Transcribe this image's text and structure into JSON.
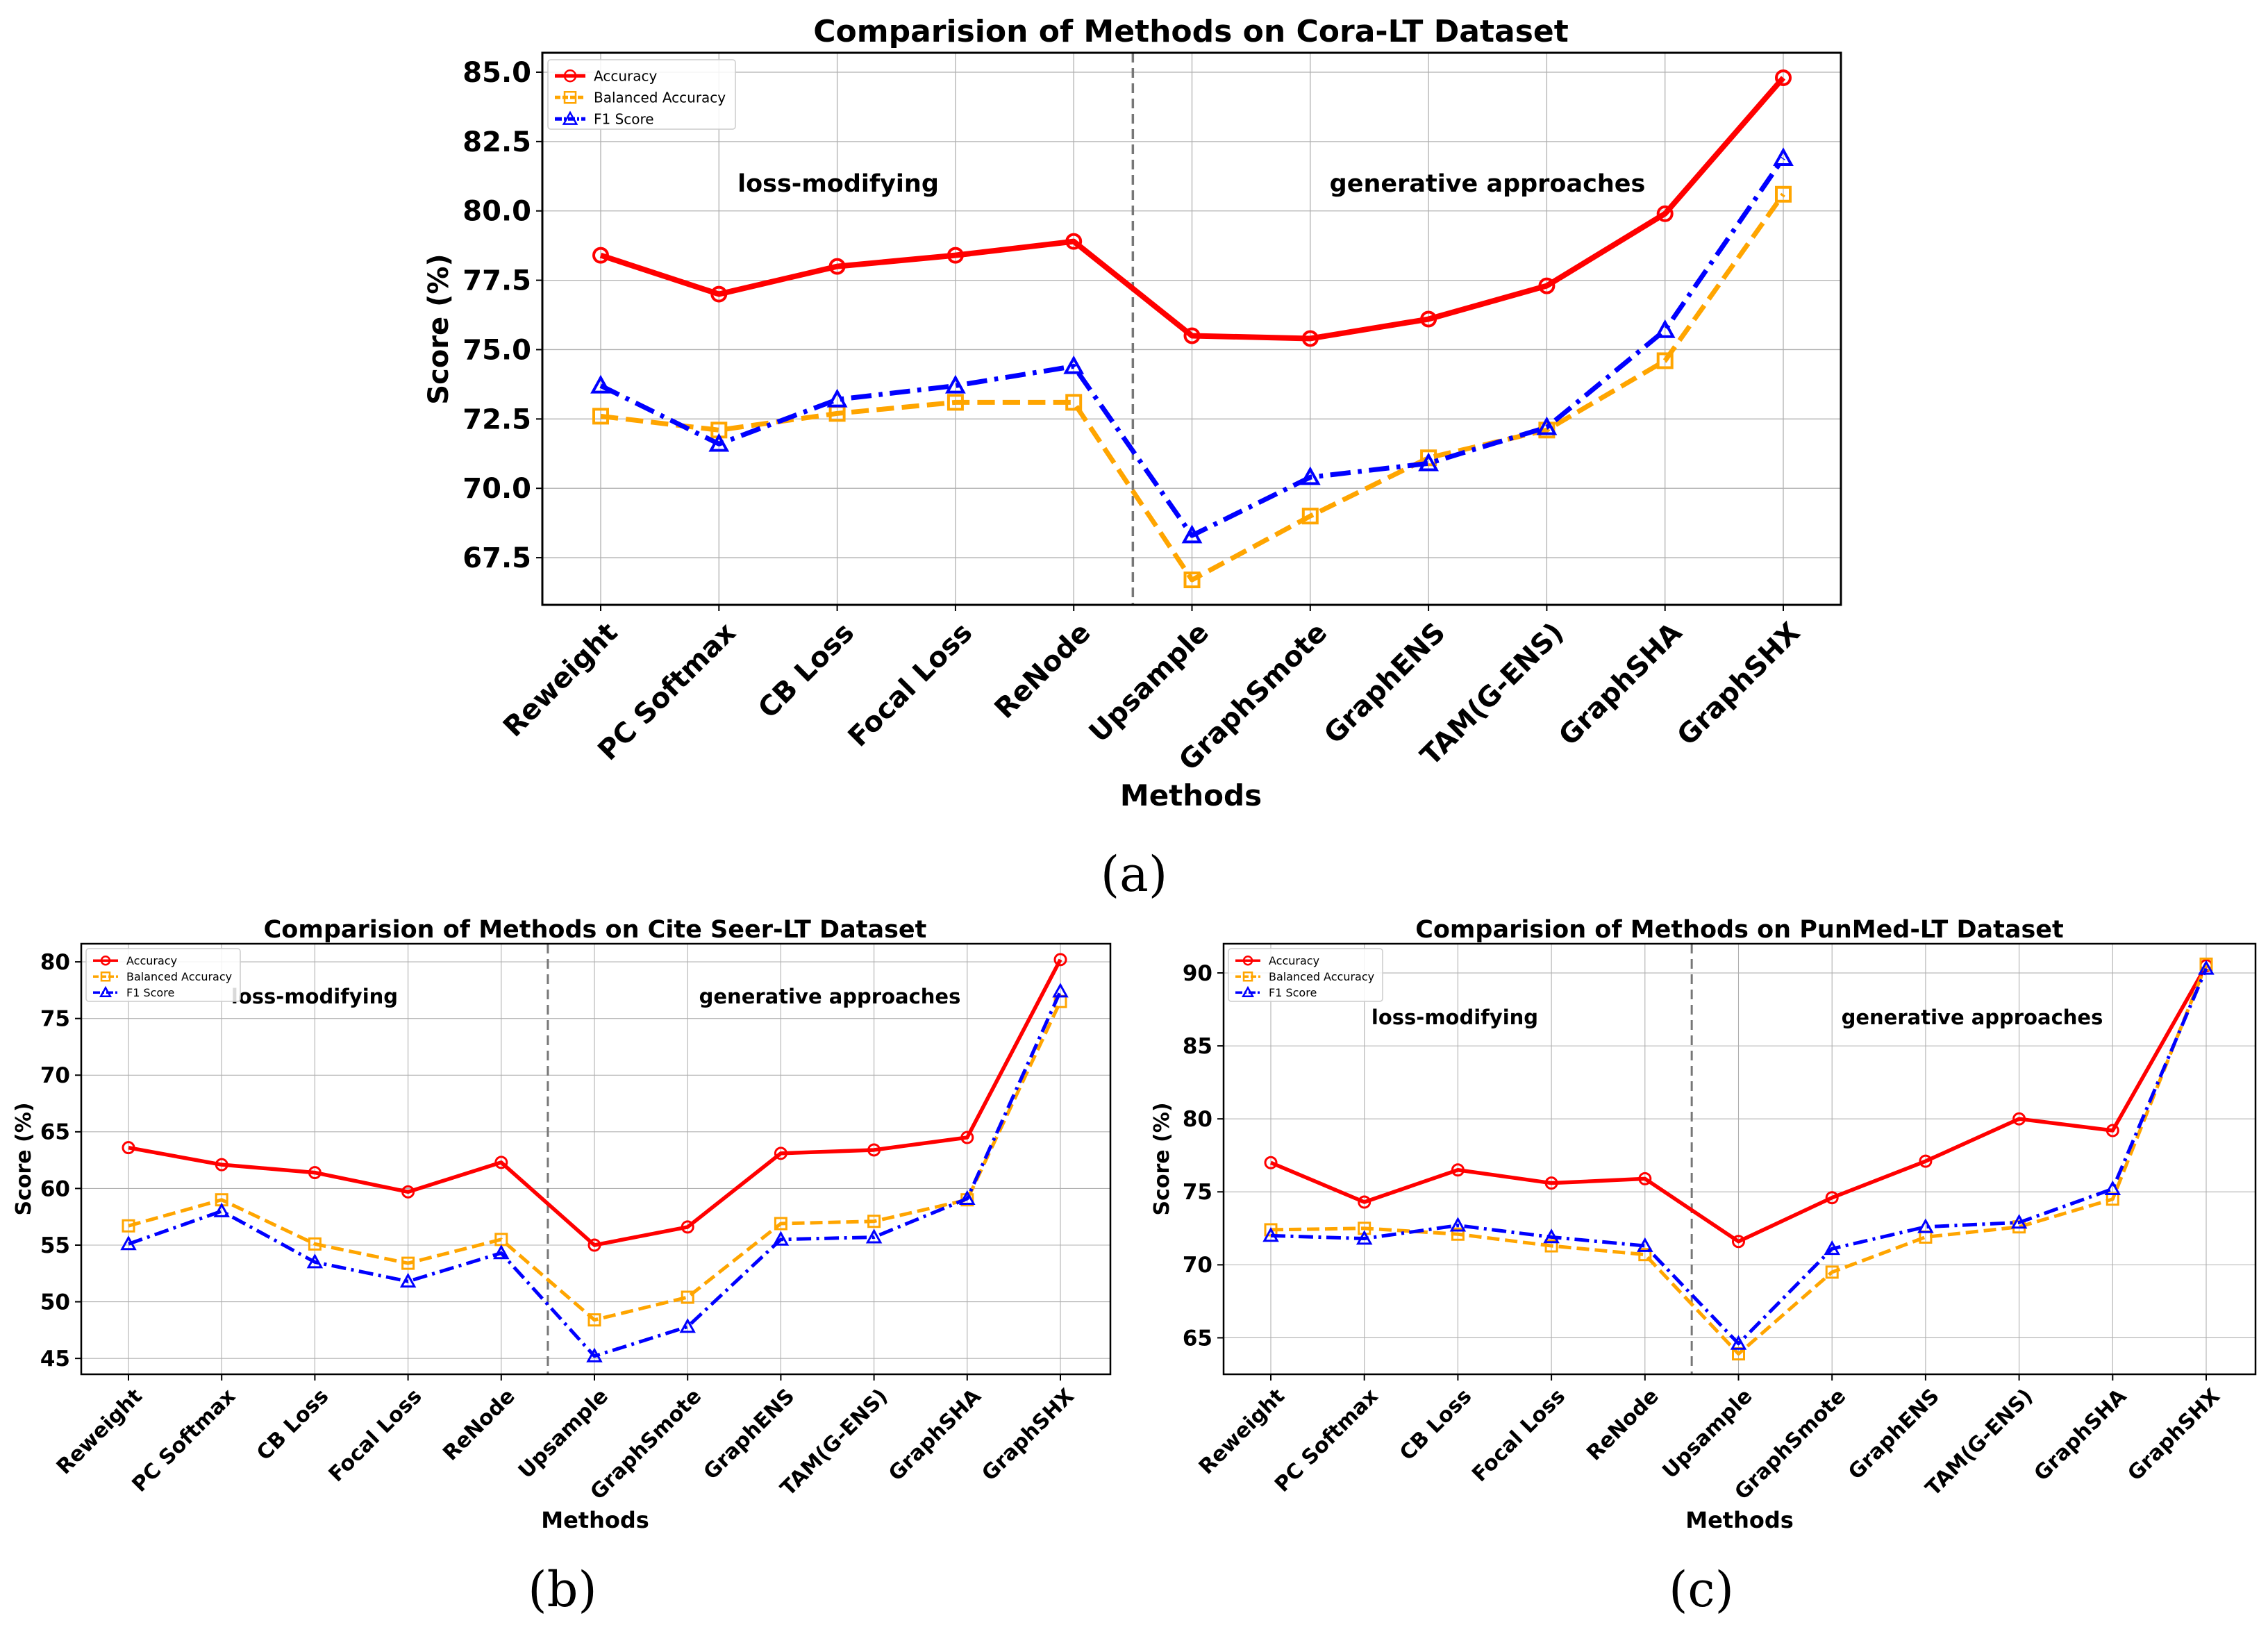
{
  "chart_data": [
    {
      "type": "line",
      "panel_label": "(a)",
      "title": "Comparision of Methods on Cora-LT Dataset",
      "xlabel": "Methods",
      "ylabel": "Score (%)",
      "categories": [
        "Reweight",
        "PC Softmax",
        "CB Loss",
        "Focal Loss",
        "ReNode",
        "Upsample",
        "GraphSmote",
        "GraphENS",
        "TAM(G-ENS)",
        "GraphSHA",
        "GraphSHX"
      ],
      "ylim": [
        65.8,
        85.7
      ],
      "yticks": [
        67.5,
        70.0,
        72.5,
        75.0,
        77.5,
        80.0,
        82.5,
        85.0
      ],
      "ytick_labels": [
        "67.5",
        "70.0",
        "72.5",
        "75.0",
        "77.5",
        "80.0",
        "82.5",
        "85.0"
      ],
      "grid": true,
      "divider_after_index": 4,
      "regions": [
        "loss-modifying",
        "generative approaches"
      ],
      "legend_position": "top-left",
      "series": [
        {
          "name": "Accuracy",
          "color": "#ff0000",
          "marker": "circle",
          "linestyle": "solid",
          "values": [
            78.4,
            77.0,
            78.0,
            78.4,
            78.9,
            75.5,
            75.4,
            76.1,
            77.3,
            79.9,
            84.8
          ]
        },
        {
          "name": "Balanced Accuracy",
          "color": "#ffa500",
          "marker": "square",
          "linestyle": "dashed",
          "values": [
            72.6,
            72.1,
            72.7,
            73.1,
            73.1,
            66.7,
            69.0,
            71.1,
            72.1,
            74.6,
            80.6
          ]
        },
        {
          "name": "F1 Score",
          "color": "#0000ff",
          "marker": "triangle",
          "linestyle": "dashdot",
          "values": [
            73.7,
            71.6,
            73.2,
            73.7,
            74.4,
            68.3,
            70.4,
            70.9,
            72.2,
            75.7,
            81.9
          ]
        }
      ]
    },
    {
      "type": "line",
      "panel_label": "(b)",
      "title": "Comparision of Methods on Cite Seer-LT Dataset",
      "xlabel": "Methods",
      "ylabel": "Score (%)",
      "categories": [
        "Reweight",
        "PC Softmax",
        "CB Loss",
        "Focal Loss",
        "ReNode",
        "Upsample",
        "GraphSmote",
        "GraphENS",
        "TAM(G-ENS)",
        "GraphSHA",
        "GraphSHX"
      ],
      "ylim": [
        43.6,
        81.6
      ],
      "yticks": [
        45,
        50,
        55,
        60,
        65,
        70,
        75,
        80
      ],
      "ytick_labels": [
        "45",
        "50",
        "55",
        "60",
        "65",
        "70",
        "75",
        "80"
      ],
      "grid": true,
      "divider_after_index": 4,
      "regions": [
        "loss-modifying",
        "generative approaches"
      ],
      "legend_position": "top-left",
      "series": [
        {
          "name": "Accuracy",
          "color": "#ff0000",
          "marker": "circle",
          "linestyle": "solid",
          "values": [
            63.6,
            62.1,
            61.4,
            59.7,
            62.3,
            55.0,
            56.6,
            63.1,
            63.4,
            64.5,
            80.2
          ]
        },
        {
          "name": "Balanced Accuracy",
          "color": "#ffa500",
          "marker": "square",
          "linestyle": "dashed",
          "values": [
            56.7,
            59.0,
            55.1,
            53.4,
            55.5,
            48.4,
            50.4,
            56.9,
            57.1,
            59.0,
            76.5
          ]
        },
        {
          "name": "F1 Score",
          "color": "#0000ff",
          "marker": "triangle",
          "linestyle": "dashdot",
          "values": [
            55.1,
            58.0,
            53.5,
            51.8,
            54.3,
            45.2,
            47.8,
            55.5,
            55.7,
            59.1,
            77.4
          ]
        }
      ]
    },
    {
      "type": "line",
      "panel_label": "(c)",
      "title": "Comparision of Methods on PunMed-LT Dataset",
      "xlabel": "Methods",
      "ylabel": "Score (%)",
      "categories": [
        "Reweight",
        "PC Softmax",
        "CB Loss",
        "Focal Loss",
        "ReNode",
        "Upsample",
        "GraphSmote",
        "GraphENS",
        "TAM(G-ENS)",
        "GraphSHA",
        "GraphSHX"
      ],
      "ylim": [
        62.5,
        92.0
      ],
      "yticks": [
        65,
        70,
        75,
        80,
        85,
        90
      ],
      "ytick_labels": [
        "65",
        "70",
        "75",
        "80",
        "85",
        "90"
      ],
      "grid": true,
      "divider_after_index": 4,
      "regions": [
        "loss-modifying",
        "generative approaches"
      ],
      "legend_position": "top-left",
      "series": [
        {
          "name": "Accuracy",
          "color": "#ff0000",
          "marker": "circle",
          "linestyle": "solid",
          "values": [
            77.0,
            74.3,
            76.5,
            75.6,
            75.9,
            71.6,
            74.6,
            77.1,
            80.0,
            79.2,
            90.5
          ]
        },
        {
          "name": "Balanced Accuracy",
          "color": "#ffa500",
          "marker": "square",
          "linestyle": "dashed",
          "values": [
            72.4,
            72.5,
            72.1,
            71.3,
            70.7,
            63.9,
            69.5,
            71.9,
            72.6,
            74.5,
            90.6
          ]
        },
        {
          "name": "F1 Score",
          "color": "#0000ff",
          "marker": "triangle",
          "linestyle": "dashdot",
          "values": [
            72.0,
            71.8,
            72.7,
            71.9,
            71.3,
            64.6,
            71.1,
            72.6,
            72.9,
            75.2,
            90.3
          ]
        }
      ]
    }
  ]
}
